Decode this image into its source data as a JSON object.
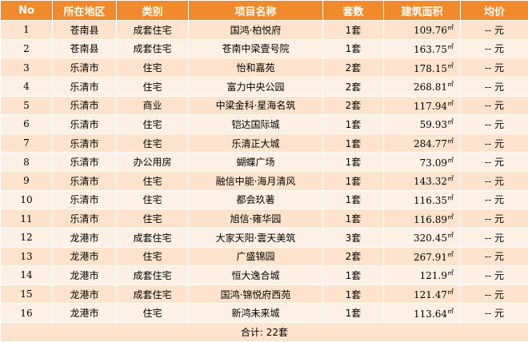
{
  "columns": [
    "No",
    "所在地区",
    "类别",
    "项目名称",
    "套数",
    "建筑面积",
    "均价"
  ],
  "area_unit": "㎡",
  "rows": [
    {
      "no": "1",
      "region": "苍南县",
      "type": "成套住宅",
      "name": "国鸿·柏悦府",
      "units": "1套",
      "area": "109.76",
      "price": "-- 元"
    },
    {
      "no": "2",
      "region": "苍南县",
      "type": "成套住宅",
      "name": "苍南中梁壹号院",
      "units": "1套",
      "area": "163.75",
      "price": "-- 元"
    },
    {
      "no": "3",
      "region": "乐清市",
      "type": "住宅",
      "name": "怡和嘉苑",
      "units": "2套",
      "area": "178.15",
      "price": "-- 元"
    },
    {
      "no": "4",
      "region": "乐清市",
      "type": "住宅",
      "name": "富力中央公园",
      "units": "2套",
      "area": "268.81",
      "price": "-- 元"
    },
    {
      "no": "5",
      "region": "乐清市",
      "type": "商业",
      "name": "中梁金科·星海名筑",
      "units": "2套",
      "area": "117.94",
      "price": "-- 元"
    },
    {
      "no": "6",
      "region": "乐清市",
      "type": "住宅",
      "name": "铠达国际城",
      "units": "1套",
      "area": "59.93",
      "price": "-- 元"
    },
    {
      "no": "7",
      "region": "乐清市",
      "type": "住宅",
      "name": "乐清正大城",
      "units": "1套",
      "area": "284.77",
      "price": "-- 元"
    },
    {
      "no": "8",
      "region": "乐清市",
      "type": "办公用房",
      "name": "蝴蝶广场",
      "units": "1套",
      "area": "73.09",
      "price": "-- 元"
    },
    {
      "no": "9",
      "region": "乐清市",
      "type": "住宅",
      "name": "融信中能·海月清风",
      "units": "1套",
      "area": "143.32",
      "price": "-- 元"
    },
    {
      "no": "10",
      "region": "乐清市",
      "type": "住宅",
      "name": "都会玖著",
      "units": "1套",
      "area": "116.35",
      "price": "-- 元"
    },
    {
      "no": "11",
      "region": "乐清市",
      "type": "住宅",
      "name": "旭信·雍华园",
      "units": "1套",
      "area": "116.89",
      "price": "-- 元"
    },
    {
      "no": "12",
      "region": "龙港市",
      "type": "成套住宅",
      "name": "大家天阳·雲天美筑",
      "units": "3套",
      "area": "320.45",
      "price": "-- 元"
    },
    {
      "no": "13",
      "region": "龙港市",
      "type": "住宅",
      "name": "广盛锦园",
      "units": "2套",
      "area": "267.91",
      "price": "-- 元"
    },
    {
      "no": "14",
      "region": "龙港市",
      "type": "成套住宅",
      "name": "恒大逸合城",
      "units": "1套",
      "area": "121.9",
      "price": "-- 元"
    },
    {
      "no": "15",
      "region": "龙港市",
      "type": "成套住宅",
      "name": "国鸿·锦悦府西苑",
      "units": "1套",
      "area": "121.47",
      "price": "-- 元"
    },
    {
      "no": "16",
      "region": "龙港市",
      "type": "住宅",
      "name": "新鸿未来城",
      "units": "1套",
      "area": "113.64",
      "price": "-- 元"
    }
  ],
  "total": "合计: 22套"
}
